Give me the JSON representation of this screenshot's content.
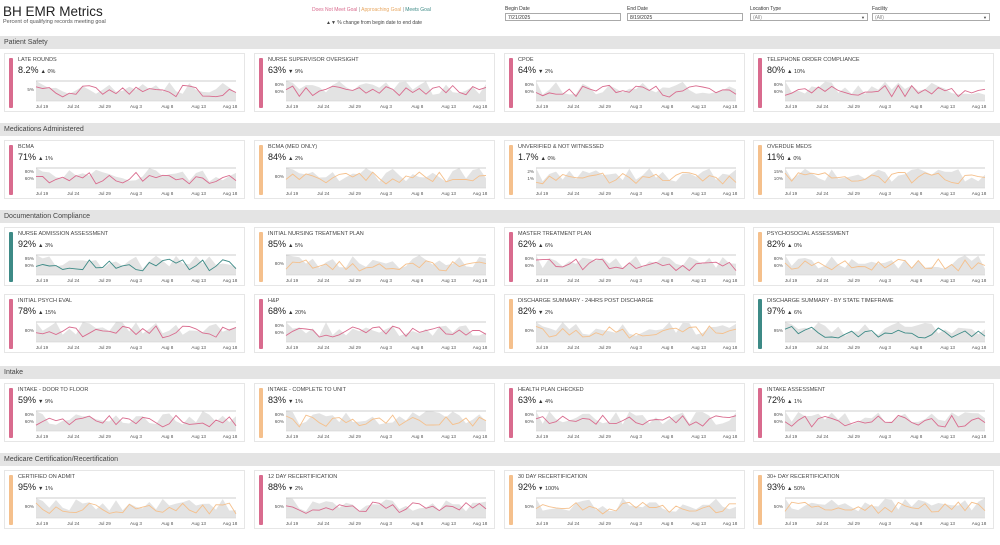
{
  "header": {
    "title": "BH EMR Metrics",
    "subtitle": "Percent of qualifying records meeting goal",
    "legend": {
      "does_not_meet": "Does Not Meet Goal",
      "approaching": "Approaching Goal",
      "meets": "Meets Goal",
      "separator": "|"
    },
    "change_note": "▲▼ % change from begin date to end date"
  },
  "filters": {
    "begin_date": {
      "label": "Begin Date",
      "value": "7/21/2025"
    },
    "end_date": {
      "label": "End Date",
      "value": "8/19/2025"
    },
    "location_type": {
      "label": "Location Type",
      "value": "(All)"
    },
    "facility": {
      "label": "Facility",
      "value": "(All)"
    }
  },
  "colors": {
    "does_not_meet": "#d96b8e",
    "approaching": "#f5c08c",
    "meets": "#3d8a86",
    "band": "#e3e3e3",
    "goal_line": "#999999"
  },
  "x_ticks": [
    "Jul 19",
    "Jul 24",
    "Jul 29",
    "Aug 3",
    "Aug 8",
    "Aug 13",
    "Aug 18"
  ],
  "sections": [
    {
      "title": "Patient Safety",
      "cards": [
        {
          "title": "LATE ROUNDS",
          "value": "8.2%",
          "arrow": "▲",
          "change": "0%",
          "status": "does_not_meet",
          "y_labels": [
            "5%"
          ]
        },
        {
          "title": "NURSE SUPERVISOR OVERSIGHT",
          "value": "63%",
          "arrow": "▼",
          "change": "9%",
          "status": "does_not_meet",
          "y_labels": [
            "80%",
            "60%"
          ]
        },
        {
          "title": "CPOE",
          "value": "64%",
          "arrow": "▼",
          "change": "2%",
          "status": "does_not_meet",
          "y_labels": [
            "80%",
            "60%"
          ]
        },
        {
          "title": "TELEPHONE ORDER COMPLIANCE",
          "value": "80%",
          "arrow": "▲",
          "change": "10%",
          "status": "does_not_meet",
          "y_labels": [
            "80%",
            "60%"
          ]
        }
      ]
    },
    {
      "title": "Medications Administered",
      "cards": [
        {
          "title": "BCMA",
          "value": "71%",
          "arrow": "▲",
          "change": "1%",
          "status": "does_not_meet",
          "y_labels": [
            "80%",
            "60%"
          ]
        },
        {
          "title": "BCMA (MED ONLY)",
          "value": "84%",
          "arrow": "▲",
          "change": "2%",
          "status": "approaching",
          "y_labels": [
            "80%"
          ]
        },
        {
          "title": "UNVERIFIED & NOT WITNESSED",
          "value": "1.7%",
          "arrow": "▲",
          "change": "0%",
          "status": "approaching",
          "y_labels": [
            "2%",
            "1%"
          ]
        },
        {
          "title": "OVERDUE MEDS",
          "value": "11%",
          "arrow": "▲",
          "change": "0%",
          "status": "approaching",
          "y_labels": [
            "15%",
            "10%"
          ]
        }
      ]
    },
    {
      "title": "Documentation Compliance",
      "cards": [
        {
          "title": "NURSE ADMISSION ASSESSMENT",
          "value": "92%",
          "arrow": "▲",
          "change": "3%",
          "status": "meets",
          "y_labels": [
            "95%",
            "90%"
          ]
        },
        {
          "title": "INITIAL NURSING TREATMENT PLAN",
          "value": "85%",
          "arrow": "▲",
          "change": "5%",
          "status": "approaching",
          "y_labels": [
            "80%"
          ]
        },
        {
          "title": "MASTER TREATMENT PLAN",
          "value": "62%",
          "arrow": "▲",
          "change": "6%",
          "status": "does_not_meet",
          "y_labels": [
            "80%",
            "60%"
          ]
        },
        {
          "title": "PSYCHOSOCIAL ASSESSMENT",
          "value": "82%",
          "arrow": "▲",
          "change": "0%",
          "status": "approaching",
          "y_labels": [
            "80%",
            "60%"
          ]
        },
        {
          "title": "INITIAL PSYCH EVAL",
          "value": "78%",
          "arrow": "▲",
          "change": "15%",
          "status": "does_not_meet",
          "y_labels": [
            "80%"
          ]
        },
        {
          "title": "H&P",
          "value": "68%",
          "arrow": "▲",
          "change": "20%",
          "status": "does_not_meet",
          "y_labels": [
            "80%",
            "60%"
          ]
        },
        {
          "title": "DISCHARGE SUMMARY - 24HRS POST DISCHARGE",
          "value": "82%",
          "arrow": "▼",
          "change": "2%",
          "status": "approaching",
          "y_labels": [
            "80%"
          ]
        },
        {
          "title": "DISCHARGE SUMMARY - BY STATE TIMEFRAME",
          "value": "97%",
          "arrow": "▲",
          "change": "6%",
          "status": "meets",
          "y_labels": [
            "95%"
          ]
        }
      ]
    },
    {
      "title": "Intake",
      "cards": [
        {
          "title": "INTAKE - DOOR TO FLOOR",
          "value": "59%",
          "arrow": "▼",
          "change": "9%",
          "status": "does_not_meet",
          "y_labels": [
            "80%",
            "60%"
          ]
        },
        {
          "title": "INTAKE - COMPLETE TO UNIT",
          "value": "83%",
          "arrow": "▼",
          "change": "1%",
          "status": "approaching",
          "y_labels": [
            "80%",
            "60%"
          ]
        },
        {
          "title": "HEALTH PLAN CHECKED",
          "value": "63%",
          "arrow": "▲",
          "change": "4%",
          "status": "does_not_meet",
          "y_labels": [
            "80%",
            "60%"
          ]
        },
        {
          "title": "INTAKE ASSESSMENT",
          "value": "72%",
          "arrow": "▲",
          "change": "1%",
          "status": "does_not_meet",
          "y_labels": [
            "80%",
            "60%"
          ]
        }
      ]
    },
    {
      "title": "Medicare Certification/Recertification",
      "cards": [
        {
          "title": "CERTIFIED ON ADMIT",
          "value": "95%",
          "arrow": "▼",
          "change": "1%",
          "status": "approaching",
          "y_labels": [
            "90%"
          ]
        },
        {
          "title": "12 DAY RECERTIFICATION",
          "value": "88%",
          "arrow": "▼",
          "change": "2%",
          "status": "does_not_meet",
          "y_labels": [
            "50%"
          ]
        },
        {
          "title": "30 DAY RECERTIFICATION",
          "value": "92%",
          "arrow": "▼",
          "change": "100%",
          "status": "approaching",
          "y_labels": [
            "50%"
          ]
        },
        {
          "title": "30+ DAY RECERTIFICATION",
          "value": "93%",
          "arrow": "▲",
          "change": "50%",
          "status": "approaching",
          "y_labels": [
            "50%"
          ]
        }
      ]
    }
  ]
}
